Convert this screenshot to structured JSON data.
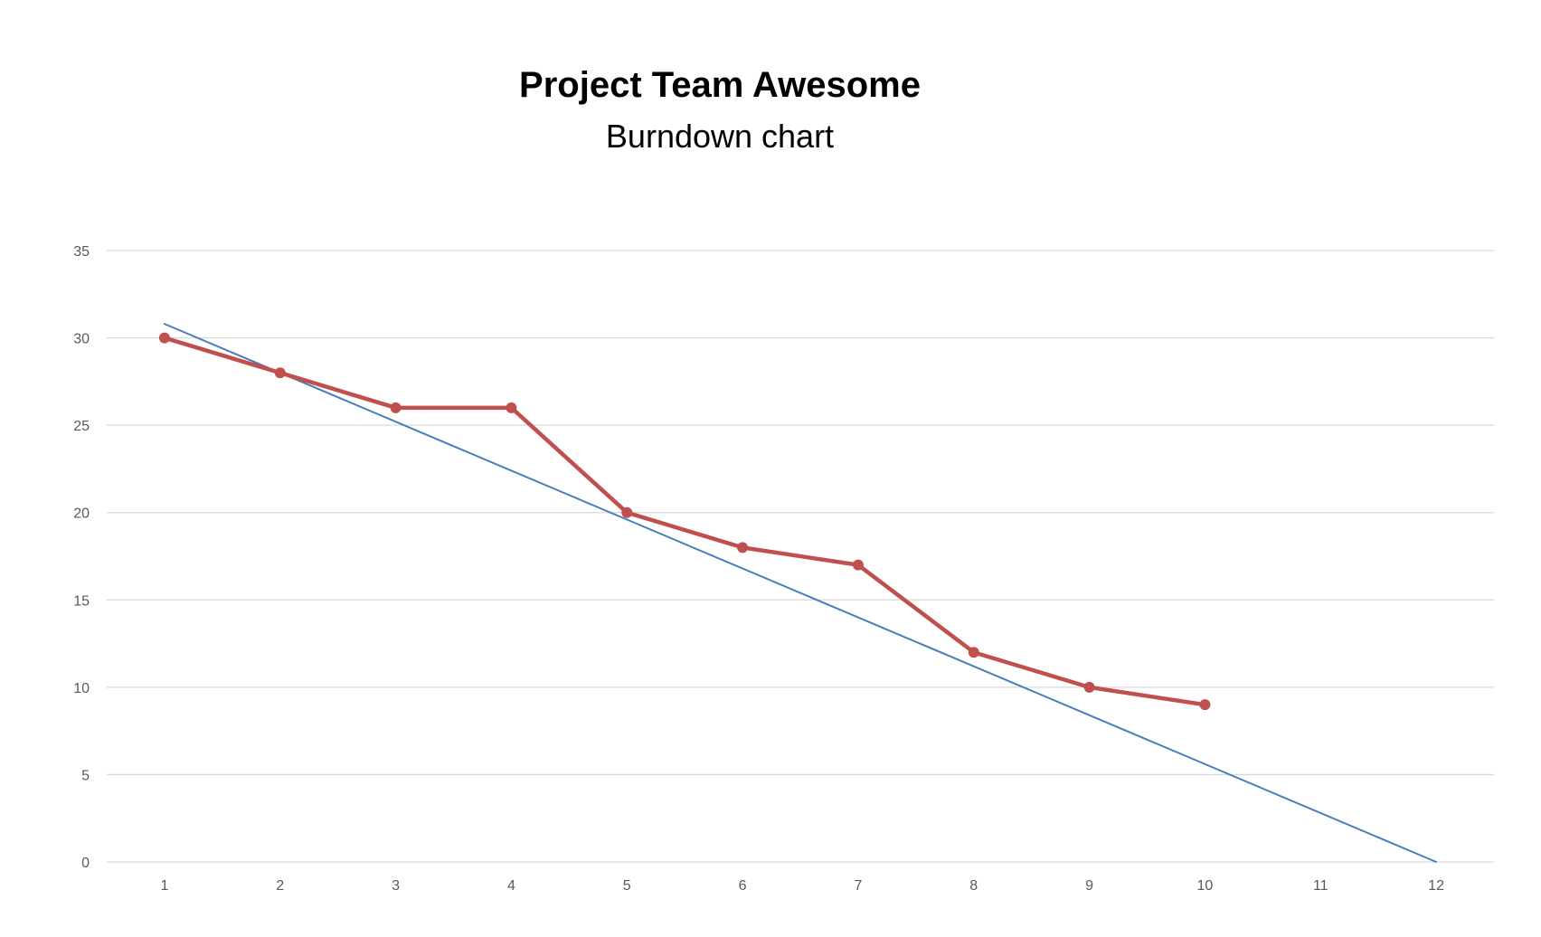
{
  "chart_data": {
    "type": "line",
    "title": "Project Team Awesome",
    "subtitle": "Burndown chart",
    "xlabel": "",
    "ylabel": "",
    "categories": [
      "1",
      "2",
      "3",
      "4",
      "5",
      "6",
      "7",
      "8",
      "9",
      "10",
      "11",
      "12"
    ],
    "ylim": [
      0,
      35
    ],
    "yticks": [
      "0",
      "5",
      "10",
      "15",
      "20",
      "25",
      "30",
      "35"
    ],
    "grid": true,
    "legend": "none",
    "series": [
      {
        "kind": "trend",
        "color": "#4a7ebb",
        "x": [
          1,
          12
        ],
        "values": [
          30.8,
          0
        ]
      },
      {
        "kind": "actual",
        "color": "#c0504d",
        "markers": true,
        "x": [
          1,
          2,
          3,
          4,
          5,
          6,
          7,
          8,
          9,
          10
        ],
        "values": [
          30,
          28,
          26,
          26,
          20,
          18,
          17,
          12,
          10,
          9
        ]
      }
    ]
  }
}
